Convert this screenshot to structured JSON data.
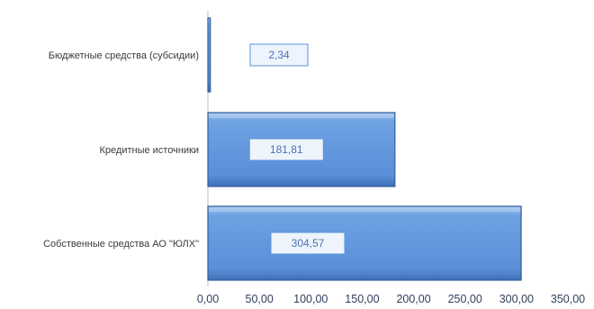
{
  "chart_data": {
    "type": "bar",
    "orientation": "horizontal",
    "title": "",
    "xlabel": "",
    "ylabel": "",
    "categories": [
      "Бюджетные средства (субсидии)",
      "Кредитные источники",
      "Собственные средства АО \"ЮЛХ\""
    ],
    "values": [
      2.34,
      181.81,
      304.57
    ],
    "data_labels": [
      "2,34",
      "181,81",
      "304,57"
    ],
    "xlim": [
      0,
      350
    ],
    "x_ticks": [
      0,
      50,
      100,
      150,
      200,
      250,
      300,
      350
    ],
    "x_tick_labels": [
      "0,00",
      "50,00",
      "100,00",
      "150,00",
      "200,00",
      "250,00",
      "300,00",
      "350,00"
    ],
    "grid": false,
    "legend": "none",
    "colors": {
      "bar_fill": "#5b93dc",
      "bar_edge": "#2f5d9c",
      "bar_highlight": "#b9d3f3",
      "label_box_fill": "#eef4fb",
      "label_box_border": "#5b93dc",
      "label_text": "#4a73b8",
      "axis_line": "#bfbfbf"
    }
  }
}
